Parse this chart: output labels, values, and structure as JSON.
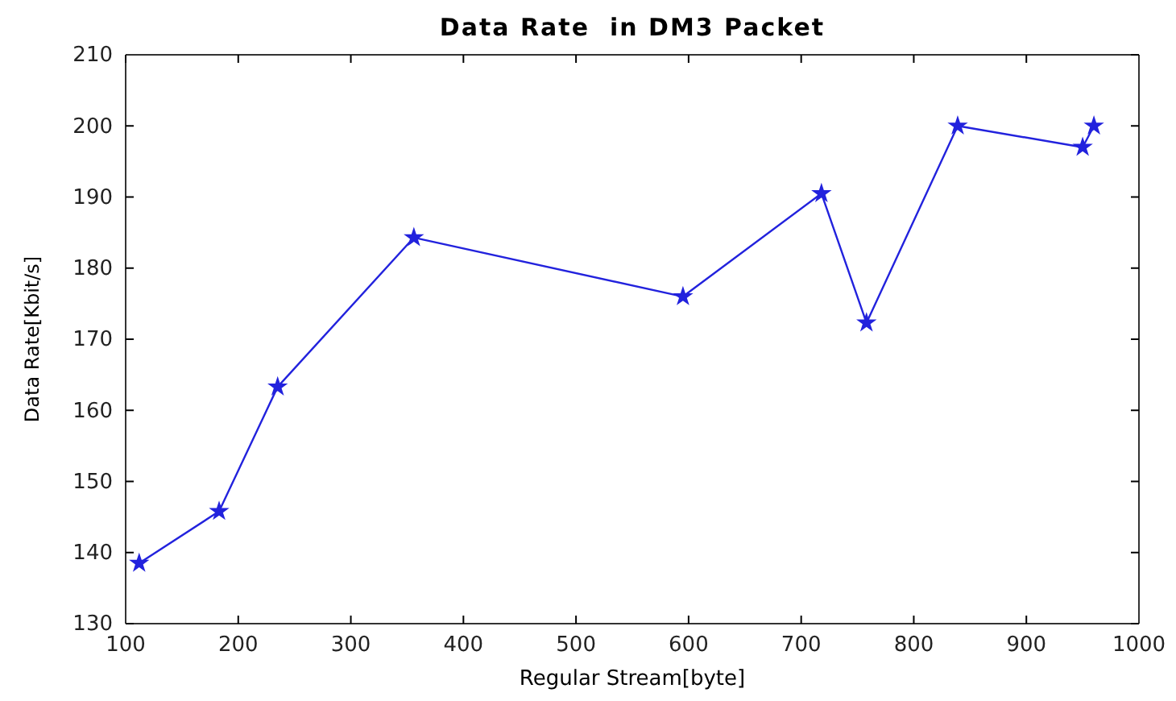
{
  "chart_data": {
    "type": "line",
    "title": "Data Rate  in DM3 Packet",
    "xlabel": "Regular Stream[byte]",
    "ylabel": "Data Rate[Kbit/s]",
    "x": [
      112,
      183,
      235,
      356,
      595,
      718,
      758,
      839,
      950,
      960
    ],
    "series": [
      {
        "color": "#2222dd",
        "values": [
          138.5,
          145.8,
          163.3,
          184.3,
          176,
          190.5,
          172.3,
          200,
          197,
          200
        ]
      }
    ],
    "xlim": [
      100,
      1000
    ],
    "xticks": [
      100,
      200,
      300,
      400,
      500,
      600,
      700,
      800,
      900,
      1000
    ],
    "ylim": [
      130,
      210
    ],
    "yticks": [
      130,
      140,
      150,
      160,
      170,
      180,
      190,
      200,
      210
    ],
    "grid": false,
    "marker": "star",
    "line_style": "solid"
  }
}
